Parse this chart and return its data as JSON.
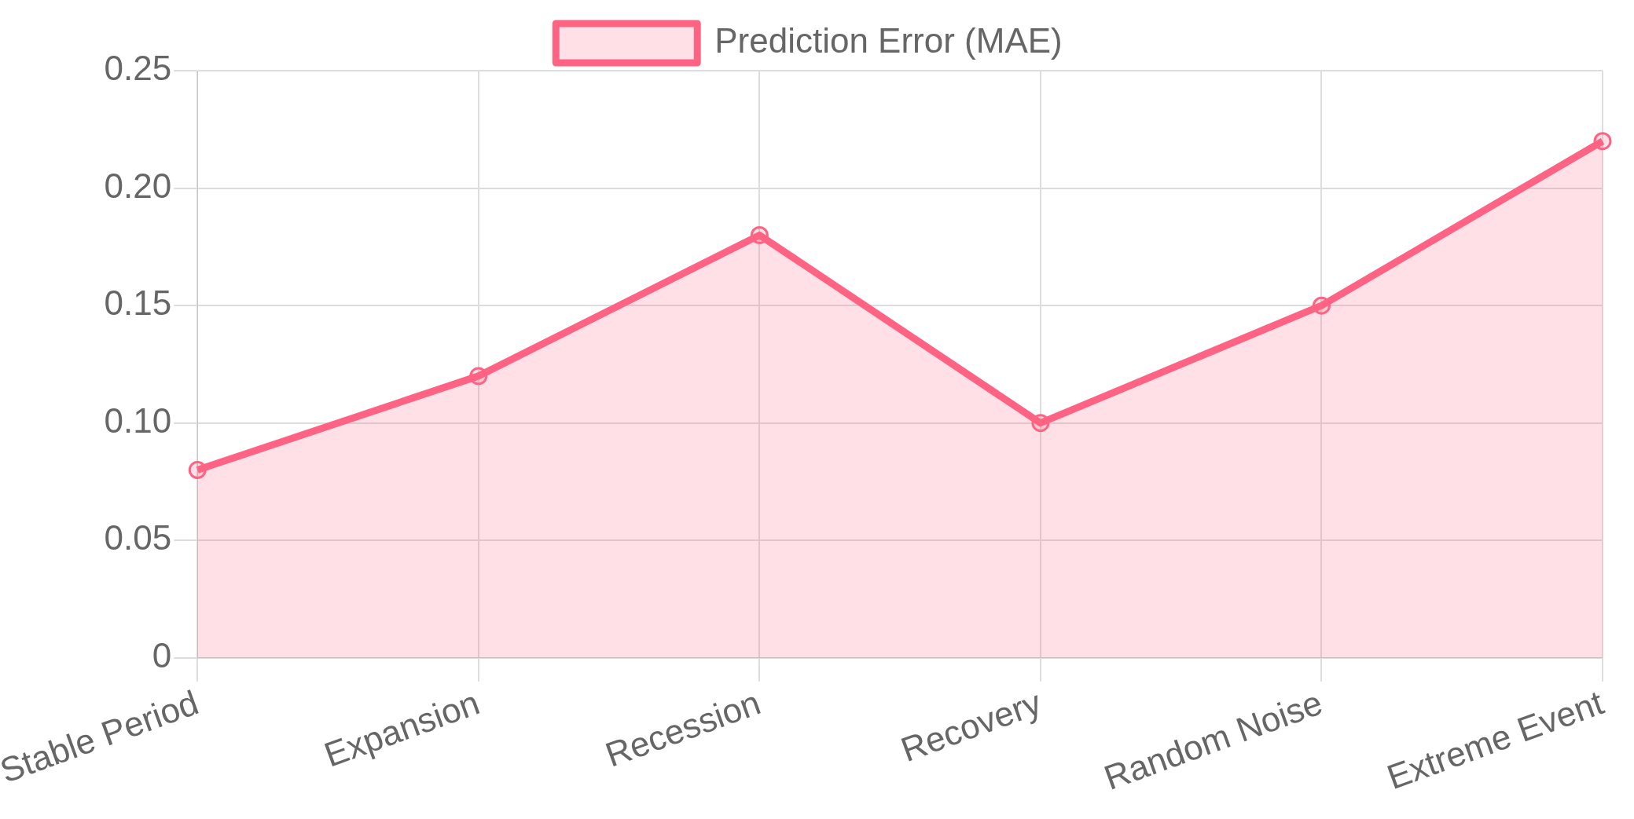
{
  "chart_data": {
    "type": "area",
    "categories": [
      "Stable Period",
      "Expansion",
      "Recession",
      "Recovery",
      "Random Noise",
      "Extreme Event"
    ],
    "series": [
      {
        "name": "Prediction Error (MAE)",
        "color": "#ff6384",
        "values": [
          0.08,
          0.12,
          0.18,
          0.1,
          0.15,
          0.22
        ]
      }
    ],
    "ylim": [
      0,
      0.25
    ],
    "yticks": [
      {
        "value": 0,
        "label": "0"
      },
      {
        "value": 0.05,
        "label": "0.05"
      },
      {
        "value": 0.1,
        "label": "0.10"
      },
      {
        "value": 0.15,
        "label": "0.15"
      },
      {
        "value": 0.2,
        "label": "0.20"
      },
      {
        "value": 0.25,
        "label": "0.25"
      }
    ],
    "grid": true,
    "legend": "top",
    "marker": "circle",
    "line_style": "solid"
  }
}
